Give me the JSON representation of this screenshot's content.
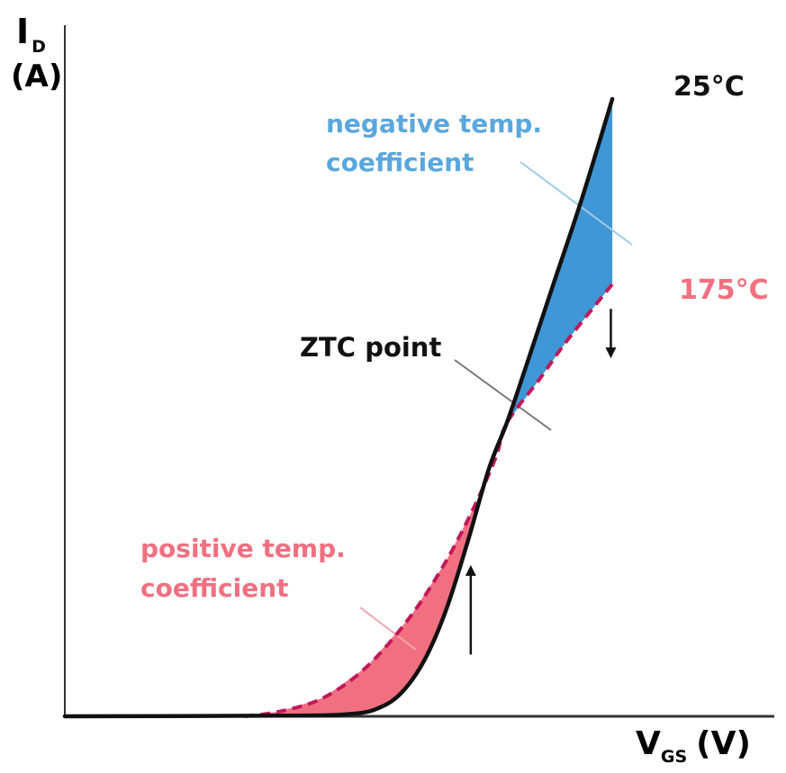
{
  "colors": {
    "curve_25c": "#111111",
    "curve_175c": "#c2185b",
    "positive_region": "#f07080",
    "negative_region": "#3f97d6",
    "positive_text": "#f07080",
    "negative_text": "#5aa7dd",
    "axis": "#333333",
    "leader": "#777777"
  },
  "chart_data": {
    "type": "line",
    "xlabel": {
      "main": "V",
      "sub": "GS",
      "unit": "(V)"
    },
    "ylabel": {
      "main": "I",
      "sub": "D",
      "unit": "(A)"
    },
    "xlim": [
      0,
      1
    ],
    "ylim": [
      0,
      1
    ],
    "grid": false,
    "ticks": false,
    "series": [
      {
        "name": "25°C",
        "style": "solid",
        "points": [
          [
            0.0,
            0.0
          ],
          [
            0.3,
            0.001
          ],
          [
            0.4,
            0.004
          ],
          [
            0.44,
            0.015
          ],
          [
            0.47,
            0.04
          ],
          [
            0.5,
            0.09
          ],
          [
            0.53,
            0.17
          ],
          [
            0.56,
            0.28
          ],
          [
            0.59,
            0.4
          ],
          [
            0.615,
            0.475
          ],
          [
            0.64,
            0.56
          ],
          [
            0.68,
            0.7
          ],
          [
            0.72,
            0.84
          ],
          [
            0.762,
            1.0
          ]
        ]
      },
      {
        "name": "175°C",
        "style": "dashed",
        "points": [
          [
            0.25,
            0.0
          ],
          [
            0.3,
            0.008
          ],
          [
            0.36,
            0.03
          ],
          [
            0.42,
            0.08
          ],
          [
            0.48,
            0.16
          ],
          [
            0.53,
            0.25
          ],
          [
            0.57,
            0.34
          ],
          [
            0.6,
            0.42
          ],
          [
            0.615,
            0.475
          ],
          [
            0.66,
            0.545
          ],
          [
            0.7,
            0.61
          ],
          [
            0.762,
            0.7
          ]
        ]
      }
    ],
    "annotations": {
      "zero_crossing": {
        "label": "ZTC point",
        "x": 0.615,
        "y": 0.475
      },
      "negative_region": {
        "label_line1": "negative temp.",
        "label_line2": "coefficient"
      },
      "positive_region": {
        "label_line1": "positive temp.",
        "label_line2": "coefficient"
      },
      "arrow_down": {
        "x": 0.76,
        "from": 0.66,
        "to": 0.58
      },
      "arrow_up": {
        "x": 0.565,
        "from": 0.1,
        "to": 0.245
      }
    }
  }
}
